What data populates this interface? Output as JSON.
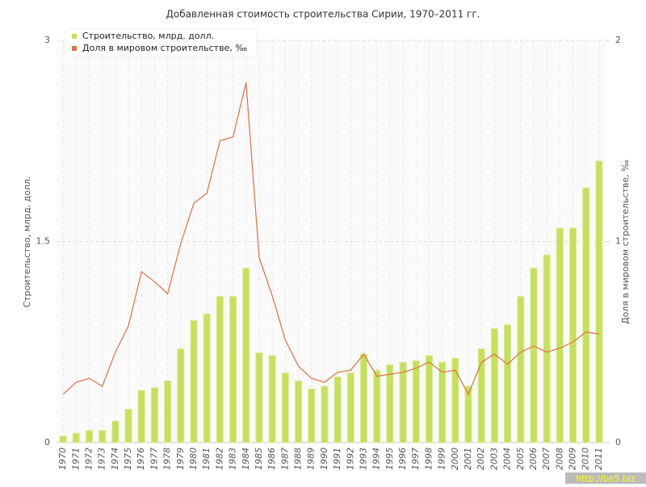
{
  "chart_data": {
    "type": "bar-line",
    "title": "Добавленная стоимость строительства Сирии, 1970–2011 гг.",
    "y_label": "Строительство, млрд. долл.",
    "y2_label": "Доля в мировом строительстве, ‰",
    "watermark": "http://be5.biz",
    "categories": [
      "1970",
      "1971",
      "1972",
      "1973",
      "1974",
      "1975",
      "1976",
      "1977",
      "1978",
      "1979",
      "1980",
      "1981",
      "1982",
      "1983",
      "1984",
      "1985",
      "1986",
      "1987",
      "1988",
      "1989",
      "1990",
      "1991",
      "1992",
      "1993",
      "1994",
      "1995",
      "1996",
      "1997",
      "1998",
      "1999",
      "2000",
      "2001",
      "2002",
      "2003",
      "2004",
      "2005",
      "2006",
      "2007",
      "2008",
      "2009",
      "2010",
      "2011"
    ],
    "series": [
      {
        "name": "Строительство, млрд. долл.",
        "color": "#c5e05a",
        "type": "bar",
        "values": [
          0.05,
          0.07,
          0.09,
          0.09,
          0.16,
          0.25,
          0.39,
          0.41,
          0.46,
          0.7,
          0.91,
          0.96,
          1.09,
          1.09,
          1.3,
          0.67,
          0.65,
          0.52,
          0.46,
          0.4,
          0.42,
          0.49,
          0.52,
          0.66,
          0.54,
          0.58,
          0.6,
          0.61,
          0.65,
          0.6,
          0.63,
          0.42,
          0.7,
          0.85,
          0.88,
          1.09,
          1.3,
          1.4,
          1.6,
          1.6,
          1.9,
          2.1
        ]
      },
      {
        "name": "Доля в мировом строительстве, ‰",
        "color": "#e07040",
        "type": "line",
        "axis": "y2",
        "values": [
          0.24,
          0.3,
          0.32,
          0.28,
          0.45,
          0.58,
          0.85,
          0.8,
          0.74,
          0.99,
          1.19,
          1.24,
          1.5,
          1.52,
          1.79,
          0.92,
          0.73,
          0.51,
          0.38,
          0.32,
          0.3,
          0.35,
          0.36,
          0.44,
          0.33,
          0.34,
          0.35,
          0.37,
          0.4,
          0.35,
          0.36,
          0.24,
          0.4,
          0.44,
          0.39,
          0.45,
          0.48,
          0.45,
          0.47,
          0.5,
          0.55,
          0.54
        ]
      }
    ],
    "ylim": [
      0,
      3
    ],
    "yticks": [
      0,
      1.5,
      3
    ],
    "y2lim": [
      0,
      2
    ],
    "y2ticks": [
      0,
      1,
      2
    ],
    "grid": true
  }
}
